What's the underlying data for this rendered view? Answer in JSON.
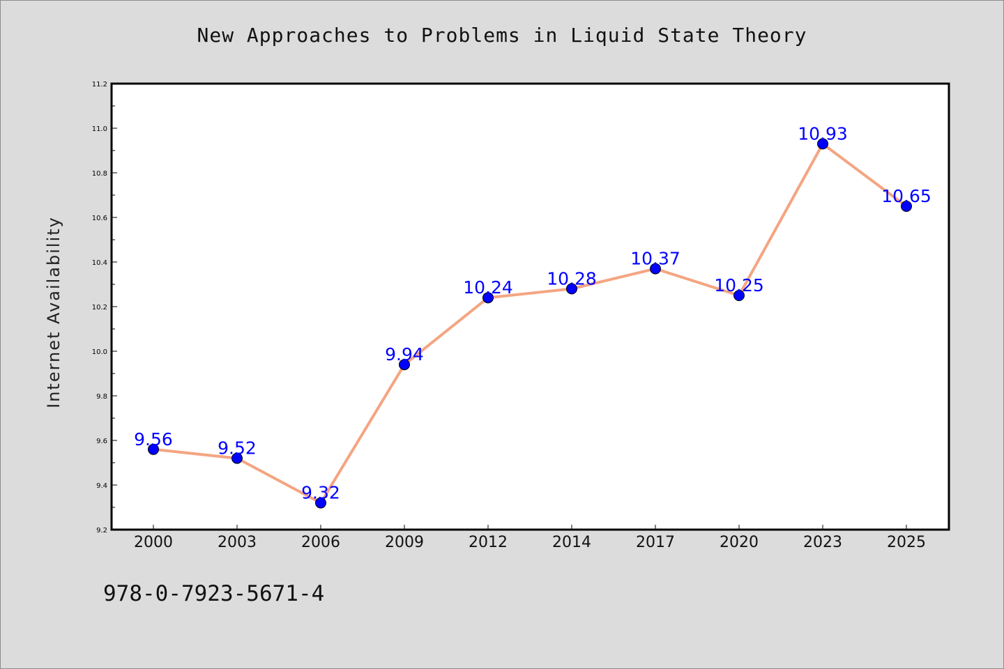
{
  "chart_data": {
    "type": "line",
    "title": "New Approaches to Problems in Liquid State Theory",
    "xlabel": "",
    "ylabel": "Internet Availability",
    "categories": [
      "2000",
      "2003",
      "2006",
      "2009",
      "2012",
      "2014",
      "2017",
      "2020",
      "2023",
      "2025"
    ],
    "series": [
      {
        "values": [
          9.56,
          9.52,
          9.32,
          9.94,
          10.24,
          10.28,
          10.37,
          10.25,
          10.93,
          10.65
        ],
        "labels": [
          "9.56",
          "9.52",
          "9.32",
          "9.94",
          "10.24",
          "10.28",
          "10.37",
          "10.25",
          "10.93",
          "10.65"
        ]
      }
    ],
    "ylim": [
      9.2,
      11.2
    ],
    "yticks": [
      "9.2",
      "9.4",
      "9.6",
      "9.8",
      "10.0",
      "10.2",
      "10.4",
      "10.6",
      "10.8",
      "11.0",
      "11.2"
    ],
    "grid": false,
    "colors": {
      "line": "#f4a582",
      "marker": "#0000ff",
      "label": "#0000ff",
      "plot_background": "#ffffff",
      "page_background": "#dcdcdc"
    }
  },
  "footer": {
    "isbn": "978-0-7923-5671-4"
  }
}
